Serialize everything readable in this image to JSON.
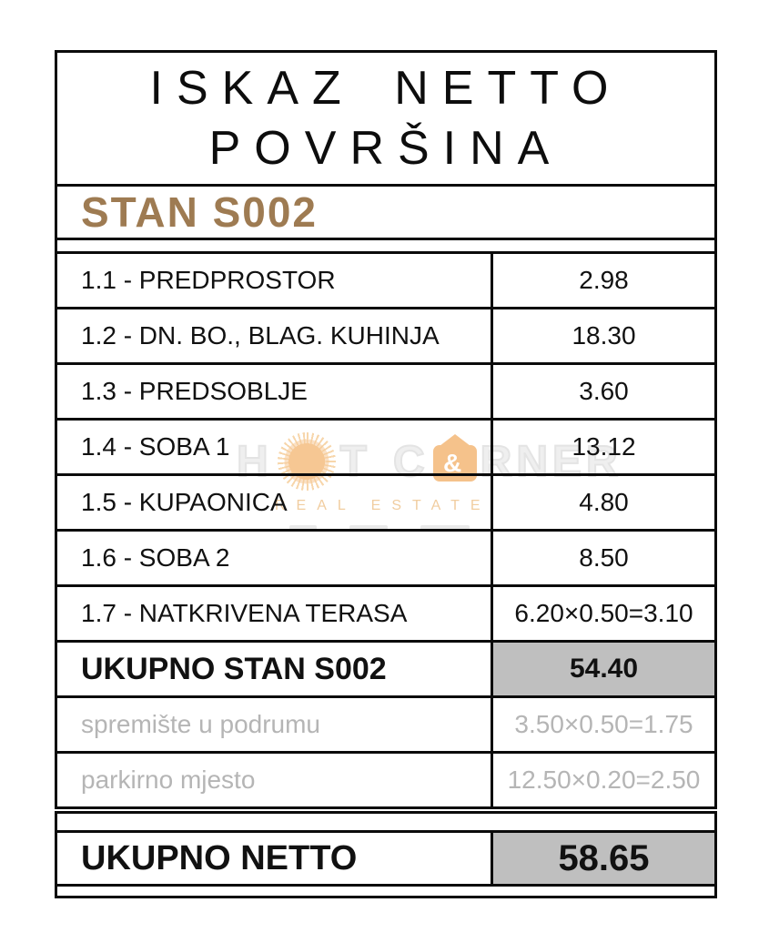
{
  "header": {
    "title_line1": "ISKAZ NETTO",
    "title_line2": "POVRŠINA"
  },
  "unit": {
    "heading": "STAN S002"
  },
  "table": {
    "rows": [
      {
        "label": "1.1 - PREDPROSTOR",
        "value": "2.98"
      },
      {
        "label": "1.2 - DN. BO., BLAG. KUHINJA",
        "value": "18.30"
      },
      {
        "label": "1.3 - PREDSOBLJE",
        "value": "3.60"
      },
      {
        "label": "1.4 - SOBA 1",
        "value": "13.12"
      },
      {
        "label": "1.5 - KUPAONICA",
        "value": "4.80"
      },
      {
        "label": "1.6 - SOBA 2",
        "value": "8.50"
      },
      {
        "label": "1.7 - NATKRIVENA TERASA",
        "value": "6.20×0.50=3.10"
      },
      {
        "label": "UKUPNO STAN S002",
        "value": "54.40"
      },
      {
        "label": "spremište u podrumu",
        "value": "3.50×0.50=1.75"
      },
      {
        "label": "parkirno mjesto",
        "value": "12.50×0.20=2.50"
      }
    ],
    "total": {
      "label": "UKUPNO NETTO",
      "value": "58.65"
    }
  },
  "watermark": {
    "brand_part1": "H",
    "brand_part2": "T",
    "brand_part3": "C",
    "brand_part4": "RNER",
    "house_symbol": "&",
    "subtitle": "REAL ESTATE"
  },
  "colors": {
    "unit_heading_brown": "#9e7b52",
    "muted_text_gray": "#b5b5b5",
    "total_cell_gray": "#bfbfbf",
    "border_black": "#0b0b0b",
    "watermark_orange": "#f5c28b",
    "watermark_light_gray": "#e9e9e9"
  }
}
